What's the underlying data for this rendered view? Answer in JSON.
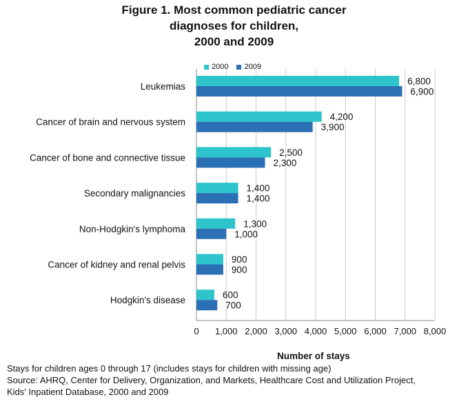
{
  "chart_data": {
    "type": "bar",
    "orientation": "horizontal",
    "title_lines": [
      "Figure 1. Most common pediatric cancer",
      "diagnoses for children,",
      "2000 and 2009"
    ],
    "categories": [
      "Leukemias",
      "Cancer of brain and nervous system",
      "Cancer of bone and connective tissue",
      "Secondary malignancies",
      "Non-Hodgkin's lymphoma",
      "Cancer of kidney and renal pelvis",
      "Hodgkin's disease"
    ],
    "series": [
      {
        "name": "2000",
        "color": "#2ec4cc",
        "values": [
          6800,
          4200,
          2500,
          1400,
          1300,
          900,
          600
        ],
        "labels": [
          "6,800",
          "4,200",
          "2,500",
          "1,400",
          "1,300",
          "900",
          "600"
        ]
      },
      {
        "name": "2009",
        "color": "#2b6fb5",
        "values": [
          6900,
          3900,
          2300,
          1400,
          1000,
          900,
          700
        ],
        "labels": [
          "6,900",
          "3,900",
          "2,300",
          "1,400",
          "1,000",
          "900",
          "700"
        ]
      }
    ],
    "xlim": [
      0,
      8000
    ],
    "xticks": [
      0,
      1000,
      2000,
      3000,
      4000,
      5000,
      6000,
      7000,
      8000
    ],
    "xtick_labels": [
      "0",
      "1,000",
      "2,000",
      "3,000",
      "4,000",
      "5,000",
      "6,000",
      "7,000",
      "8,000"
    ],
    "xlabel": "Number of stays",
    "ylabel": "",
    "grid": "vertical",
    "legend": "top-left"
  },
  "footnotes": [
    "Stays for children ages  0 through 17 (includes stays for children with missing age)",
    "Source: AHRQ, Center for Delivery, Organization, and Markets, Healthcare Cost and Utilization Project,",
    "Kids' Inpatient Database, 2000 and 2009"
  ]
}
